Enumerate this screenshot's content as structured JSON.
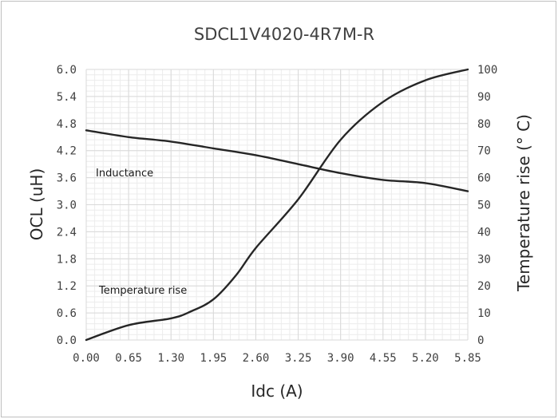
{
  "chart_data": {
    "type": "line",
    "title": "SDCL1V4020-4R7M-R",
    "xlabel": "Idc (A)",
    "ylabel": "OCL (uH)",
    "y2label": "Temperature rise (° C)",
    "xlim": [
      0,
      5.85
    ],
    "ylim": [
      0,
      6.0
    ],
    "y2lim": [
      0,
      100
    ],
    "x_ticks": [
      "0.00",
      "0.65",
      "1.30",
      "1.95",
      "2.60",
      "3.25",
      "3.90",
      "4.55",
      "5.20",
      "5.85"
    ],
    "y_ticks": [
      "0.0",
      "0.6",
      "1.2",
      "1.8",
      "2.4",
      "3.0",
      "3.6",
      "4.2",
      "4.8",
      "5.4",
      "6.0"
    ],
    "y2_ticks": [
      "0",
      "10",
      "20",
      "30",
      "40",
      "50",
      "60",
      "70",
      "80",
      "90",
      "100"
    ],
    "grid": true,
    "annotations": [
      {
        "text": "Inductance"
      },
      {
        "text": "Temperature rise"
      }
    ],
    "series": [
      {
        "axis": "left",
        "x": [
          0.0,
          0.65,
          1.3,
          1.95,
          2.6,
          3.25,
          3.9,
          4.55,
          5.2,
          5.85
        ],
        "values": [
          4.65,
          4.5,
          4.4,
          4.25,
          4.1,
          3.9,
          3.7,
          3.55,
          3.48,
          3.3
        ]
      },
      {
        "axis": "right",
        "x": [
          0.0,
          0.65,
          1.3,
          1.6,
          1.95,
          2.3,
          2.6,
          3.25,
          3.9,
          4.55,
          5.2,
          5.85
        ],
        "values": [
          0,
          5.5,
          8,
          10.5,
          15,
          24,
          34,
          52,
          74,
          88,
          96,
          100
        ]
      }
    ],
    "colors": {
      "line": "#262626",
      "grid": "#d9d9d9",
      "text": "#404040"
    }
  }
}
